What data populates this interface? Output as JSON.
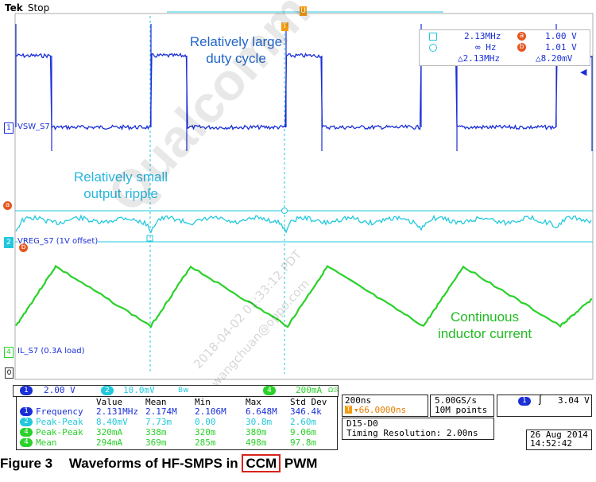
{
  "header": {
    "brand": "Tek",
    "status": "Stop"
  },
  "cursor_readout": {
    "r1_left": "2.13MHz",
    "r1_badge": "a",
    "r1_right": "1.00 V",
    "r2_left": "∞ Hz",
    "r2_badge": "b",
    "r2_right": "1.01 V",
    "r3_left": "△2.13MHz",
    "r3_right": "△8.20mV"
  },
  "channels": {
    "ch1": {
      "num": "1",
      "label": "VSW_S7",
      "color": "#1a2fd6"
    },
    "ch2": {
      "num": "2",
      "label": "VREG_S7 (1V offset)",
      "color": "#22c9dc"
    },
    "ch4": {
      "num": "4",
      "label": "IL_S7 (0.3A load)",
      "color": "#2ad12a"
    },
    "ref_marker": "0",
    "cursor_a_marker": "a",
    "cursor_b_marker": "b",
    "trigger_marker": "T",
    "top_marker": "U"
  },
  "annotations": {
    "duty_line1": "Relatively large",
    "duty_line2": "duty cycle",
    "ripple_line1": "Relatively small",
    "ripple_line2": "output ripple",
    "inductor_line1": "Continuous",
    "inductor_line2": "inductor current"
  },
  "watermark": {
    "logo": "Qualcomm",
    "line1": "2018-04-02 01:33:12 PDT",
    "line2": "wangchuan@oppo.com"
  },
  "scale_bar": {
    "ch1_num": "1",
    "ch1_scale": "2.00 V",
    "ch2_num": "2",
    "ch2_scale": "10.0mV",
    "ch4_num": "4",
    "ch4_scale": "200mA"
  },
  "timebase": {
    "time_div": "200ns",
    "trigger_pos": "▾66.0000ns",
    "sample_rate": "5.00GS/s",
    "record_len": "10M points"
  },
  "trigger": {
    "num": "1",
    "symbol": "ʃ",
    "level": "3.04 V"
  },
  "digital": {
    "channels": "D15-D0",
    "timing": "Timing Resolution: 2.00ns"
  },
  "datetime": {
    "date": "26 Aug 2014",
    "time": "14:52:42"
  },
  "measurements": {
    "headers": [
      "",
      "Value",
      "Mean",
      "Min",
      "Max",
      "Std Dev"
    ],
    "rows": [
      {
        "ch": "1",
        "name": "Frequency",
        "value": "2.131MHz",
        "mean": "2.174M",
        "min": "2.106M",
        "max": "6.648M",
        "std": "346.4k",
        "color": "#1a2fd6"
      },
      {
        "ch": "2",
        "name": "Peak-Peak",
        "value": "8.40mV",
        "mean": "7.73m",
        "min": "0.00",
        "max": "30.8m",
        "std": "2.60m",
        "color": "#22c9dc"
      },
      {
        "ch": "4",
        "name": "Peak-Peak",
        "value": "320mA",
        "mean": "338m",
        "min": "320m",
        "max": "380m",
        "std": "9.06m",
        "color": "#2ad12a"
      },
      {
        "ch": "4",
        "name": "Mean",
        "value": "294mA",
        "mean": "369m",
        "min": "285m",
        "max": "498m",
        "std": "97.8m",
        "color": "#2ad12a"
      }
    ]
  },
  "caption": {
    "prefix": "Figure 3",
    "text": "Waveforms of HF-SMPS in",
    "boxed": "CCM",
    "suffix": "PWM"
  }
}
